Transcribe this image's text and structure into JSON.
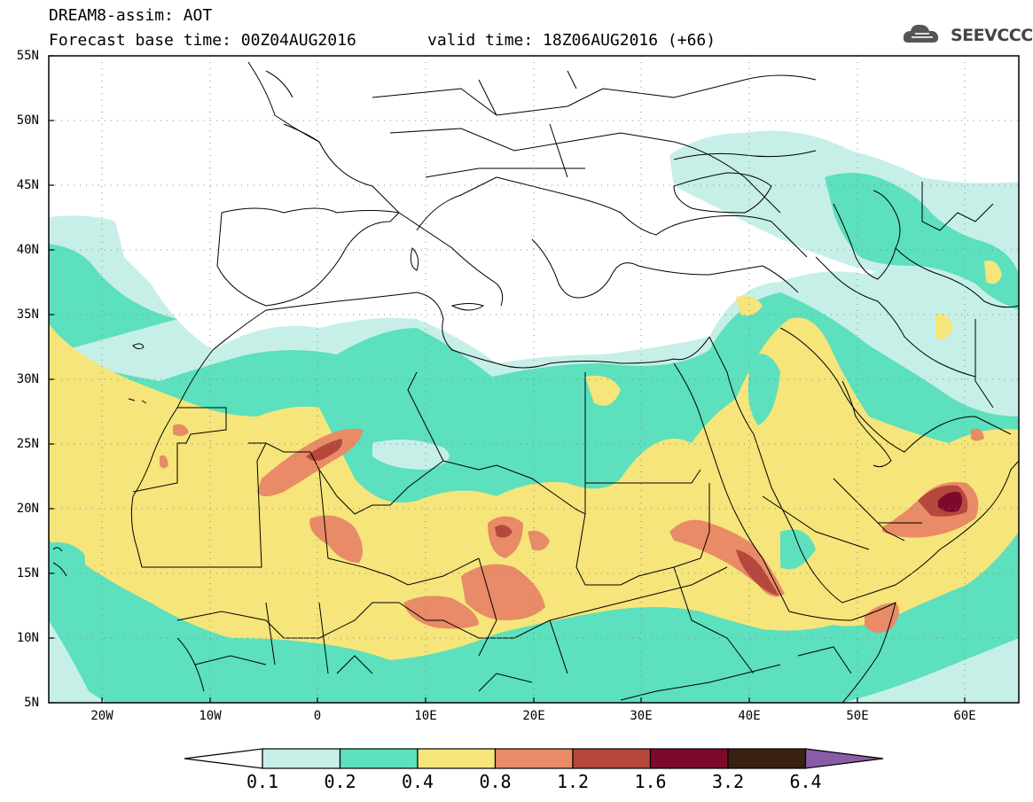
{
  "header": {
    "title_line1": "DREAM8-assim: AOT",
    "title_line2": "Forecast base time: 00Z04AUG2016",
    "valid_time": "valid time: 18Z06AUG2016 (+66)",
    "logo_text": "SEEVCCC",
    "logo_icon": "cloud-icon"
  },
  "map": {
    "y_axis_labels": [
      "55N",
      "50N",
      "45N",
      "40N",
      "35N",
      "30N",
      "25N",
      "20N",
      "15N",
      "10N",
      "5N"
    ],
    "x_axis_labels": [
      "20W",
      "10W",
      "0",
      "10E",
      "20E",
      "30E",
      "40E",
      "50E",
      "60E"
    ],
    "lon_range": [
      -25,
      65
    ],
    "lat_range": [
      5,
      55
    ]
  },
  "colorbar": {
    "labels": [
      "0.1",
      "0.2",
      "0.4",
      "0.8",
      "1.2",
      "1.6",
      "3.2",
      "6.4"
    ],
    "colors": [
      "#ffffff",
      "#c6efe8",
      "#5ce0bd",
      "#f5e57a",
      "#e88b66",
      "#b5473c",
      "#7d0a2a",
      "#3b2113",
      "#8a5ca6"
    ]
  }
}
